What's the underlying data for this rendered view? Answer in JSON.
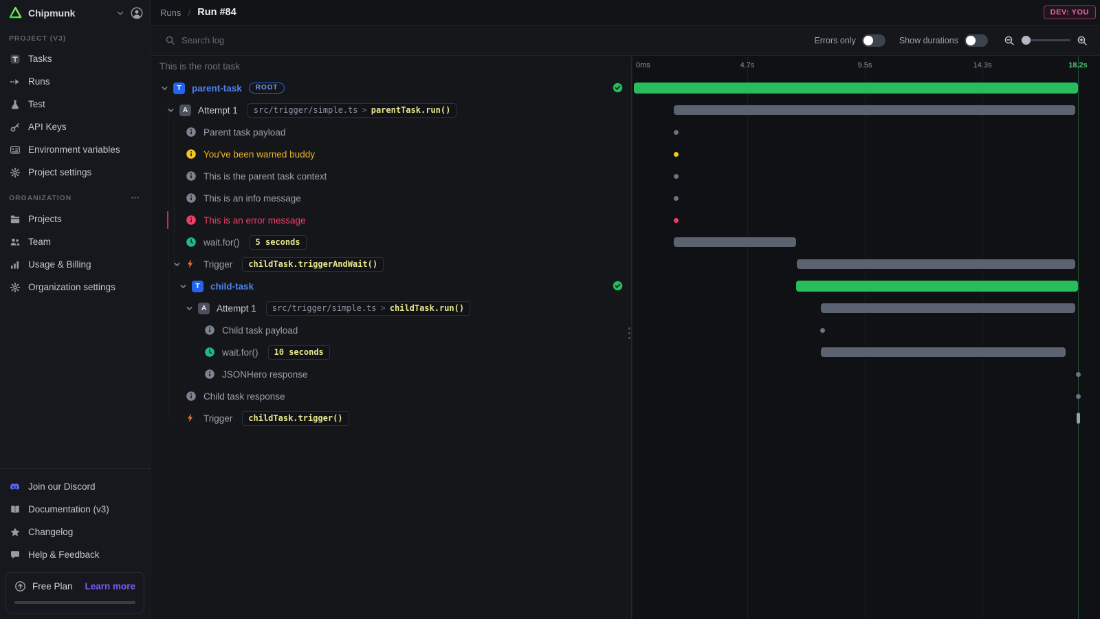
{
  "colors": {
    "bg_page": "#0d0f12",
    "bg_sidebar": "#16181d",
    "bg_header": "#111317",
    "bg_toolbar": "#15171b",
    "bg_tree": "#141619",
    "bg_timeline": "#0f1114",
    "border": "#23262d",
    "text_primary": "#d9dde3",
    "text_secondary": "#9aa1ab",
    "blue": "#4d82f0",
    "blue_badge": "#2563eb",
    "green": "#28bd5c",
    "green_text": "#4cc86d",
    "yellow": "#f0b429",
    "yellow_icon": "#f5c525",
    "red": "#f23d6b",
    "teal": "#21b795",
    "orange": "#f4732c",
    "pink": "#f2609f",
    "purple": "#7c5af8",
    "discord": "#5865f2",
    "bar_gray": "#5b6270",
    "dot_gray": "#6b7380",
    "code_yellow": "#e7e58b"
  },
  "sidebar": {
    "workspace": "Chipmunk",
    "sections": [
      {
        "label": "PROJECT (V3)",
        "menu_dots": false,
        "items": [
          {
            "icon": "tasks",
            "label": "Tasks"
          },
          {
            "icon": "runs",
            "label": "Runs"
          },
          {
            "icon": "test",
            "label": "Test"
          },
          {
            "icon": "key",
            "label": "API Keys"
          },
          {
            "icon": "env",
            "label": "Environment variables"
          },
          {
            "icon": "gear",
            "label": "Project settings"
          }
        ]
      },
      {
        "label": "ORGANIZATION",
        "menu_dots": true,
        "items": [
          {
            "icon": "folder",
            "label": "Projects"
          },
          {
            "icon": "team",
            "label": "Team"
          },
          {
            "icon": "chart",
            "label": "Usage & Billing"
          },
          {
            "icon": "gear",
            "label": "Organization settings"
          }
        ]
      }
    ],
    "footer_items": [
      {
        "icon": "discord",
        "label": "Join our Discord"
      },
      {
        "icon": "book",
        "label": "Documentation (v3)"
      },
      {
        "icon": "star",
        "label": "Changelog"
      },
      {
        "icon": "chat",
        "label": "Help & Feedback"
      }
    ],
    "plan": {
      "icon": "arrow-up-circle",
      "label": "Free Plan",
      "link": "Learn more"
    }
  },
  "header": {
    "breadcrumb": "Runs",
    "separator": "/",
    "title": "Run #84",
    "env_badge": "DEV: YOU"
  },
  "toolbar": {
    "search_placeholder": "Search log",
    "errors_only_label": "Errors only",
    "errors_only_on": false,
    "show_durations_label": "Show durations",
    "show_durations_on": false
  },
  "trace": {
    "root_note": "This is the root task",
    "rows": [
      {
        "depth": 0,
        "chevron": true,
        "icon": "t-badge",
        "label": "parent-task",
        "color": "blue",
        "pill": "ROOT",
        "check": true,
        "tl": {
          "kind": "bar",
          "color": "green",
          "from": 0,
          "to": 18.2
        }
      },
      {
        "depth": 1,
        "chevron": true,
        "icon": "a-badge",
        "label": "Attempt 1",
        "color": "bright",
        "code": [
          {
            "t": "src/trigger/simple.ts",
            "c": "dim"
          },
          {
            "t": ">",
            "c": "arrow"
          },
          {
            "t": "parentTask.run()",
            "c": "yel"
          }
        ],
        "tl": {
          "kind": "bar",
          "color": "gray",
          "from": 1.71,
          "to": 18.1
        }
      },
      {
        "depth": 2,
        "icon": "info",
        "icon_color": "gray",
        "label": "Parent task payload",
        "tl": {
          "kind": "dot",
          "color": "gray",
          "at": 1.79
        }
      },
      {
        "depth": 2,
        "icon": "info",
        "icon_color": "yellow",
        "label": "You've been warned buddy",
        "color": "yellow",
        "tl": {
          "kind": "dot",
          "color": "yellow",
          "at": 1.79
        }
      },
      {
        "depth": 2,
        "icon": "info",
        "icon_color": "gray",
        "label": "This is the parent task context",
        "tl": {
          "kind": "dot",
          "color": "gray",
          "at": 1.79
        }
      },
      {
        "depth": 2,
        "icon": "info",
        "icon_color": "gray",
        "label": "This is an info message",
        "tl": {
          "kind": "dot",
          "color": "gray",
          "at": 1.79
        }
      },
      {
        "depth": 2,
        "icon": "info",
        "icon_color": "red",
        "label": "This is an error message",
        "color": "red",
        "error_accent": true,
        "tl": {
          "kind": "dot",
          "color": "red",
          "at": 1.79
        }
      },
      {
        "depth": 2,
        "icon": "clock",
        "label": "wait.for()",
        "code": [
          {
            "t": "5 seconds",
            "c": "yel"
          }
        ],
        "tl": {
          "kind": "bar",
          "color": "gray",
          "from": 1.71,
          "to": 6.7
        }
      },
      {
        "depth": 2,
        "chevron": true,
        "icon": "bolt",
        "label": "Trigger",
        "code": [
          {
            "t": "childTask.triggerAndWait()",
            "c": "yel"
          }
        ],
        "tl": {
          "kind": "bar",
          "color": "gray",
          "from": 6.73,
          "to": 18.1
        }
      },
      {
        "depth": 3,
        "chevron": true,
        "icon": "t-badge",
        "label": "child-task",
        "color": "blue",
        "check": true,
        "tl": {
          "kind": "bar",
          "color": "green",
          "from": 6.7,
          "to": 18.2
        }
      },
      {
        "depth": 4,
        "chevron": true,
        "icon": "a-badge",
        "label": "Attempt 1",
        "color": "bright",
        "code": [
          {
            "t": "src/trigger/simple.ts",
            "c": "dim"
          },
          {
            "t": ">",
            "c": "arrow"
          },
          {
            "t": "childTask.run()",
            "c": "yel"
          }
        ],
        "tl": {
          "kind": "bar",
          "color": "gray",
          "from": 7.71,
          "to": 18.1
        }
      },
      {
        "depth": 5,
        "icon": "info",
        "icon_color": "gray",
        "label": "Child task payload",
        "tl": {
          "kind": "dot",
          "color": "gray",
          "at": 7.77
        }
      },
      {
        "depth": 5,
        "icon": "clock",
        "label": "wait.for()",
        "code": [
          {
            "t": "10 seconds",
            "c": "yel"
          }
        ],
        "tl": {
          "kind": "bar",
          "color": "gray",
          "from": 7.71,
          "to": 17.7
        }
      },
      {
        "depth": 5,
        "icon": "info",
        "icon_color": "gray",
        "label": "JSONHero response",
        "tl": {
          "kind": "dot",
          "color": "gray",
          "at": 18.2
        }
      },
      {
        "depth": 2,
        "icon": "info",
        "icon_color": "gray",
        "label": "Child task response",
        "tl": {
          "kind": "dot",
          "color": "gray",
          "at": 18.2
        }
      },
      {
        "depth": 2,
        "icon": "bolt",
        "label": "Trigger",
        "code": [
          {
            "t": "childTask.trigger()",
            "c": "yel"
          }
        ],
        "tl": {
          "kind": "tick",
          "at": 18.2
        }
      }
    ]
  },
  "timeline": {
    "max_seconds": 18.2,
    "ticks": [
      {
        "label": "0ms",
        "s": 0
      },
      {
        "label": "4.7s",
        "s": 4.7
      },
      {
        "label": "9.5s",
        "s": 9.5
      },
      {
        "label": "14.3s",
        "s": 14.3
      },
      {
        "label": "18.2s",
        "s": 18.2,
        "accent": true
      }
    ]
  }
}
